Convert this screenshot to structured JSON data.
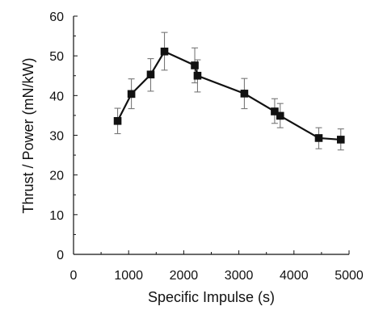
{
  "chart_data": {
    "type": "scatter",
    "title": "",
    "xlabel": "Specific Impulse (s)",
    "ylabel": "Thrust / Power  (mN/kW)",
    "xlim": [
      0,
      5000
    ],
    "ylim": [
      0,
      60
    ],
    "xticks": [
      0,
      1000,
      2000,
      3000,
      4000,
      5000
    ],
    "yticks": [
      0,
      10,
      20,
      30,
      40,
      50,
      60
    ],
    "grid": false,
    "series": [
      {
        "color": "#111111",
        "marker": "square",
        "points": [
          {
            "x": 800,
            "y": 33.6,
            "yerr_low": 3.2,
            "yerr_high": 3.2
          },
          {
            "x": 1050,
            "y": 40.4,
            "yerr_low": 3.7,
            "yerr_high": 3.8
          },
          {
            "x": 1400,
            "y": 45.3,
            "yerr_low": 4.2,
            "yerr_high": 4.0
          },
          {
            "x": 1650,
            "y": 51.1,
            "yerr_low": 4.7,
            "yerr_high": 4.8
          },
          {
            "x": 2200,
            "y": 47.6,
            "yerr_low": 4.4,
            "yerr_high": 4.4
          },
          {
            "x": 2250,
            "y": 45.0,
            "yerr_low": 4.1,
            "yerr_high": 4.0
          },
          {
            "x": 3100,
            "y": 40.5,
            "yerr_low": 3.8,
            "yerr_high": 3.8
          },
          {
            "x": 3650,
            "y": 36.0,
            "yerr_low": 3.0,
            "yerr_high": 3.2
          },
          {
            "x": 3750,
            "y": 34.9,
            "yerr_low": 3.0,
            "yerr_high": 3.1
          },
          {
            "x": 4450,
            "y": 29.3,
            "yerr_low": 2.7,
            "yerr_high": 2.6
          },
          {
            "x": 4850,
            "y": 28.9,
            "yerr_low": 2.6,
            "yerr_high": 2.7
          }
        ]
      }
    ]
  }
}
